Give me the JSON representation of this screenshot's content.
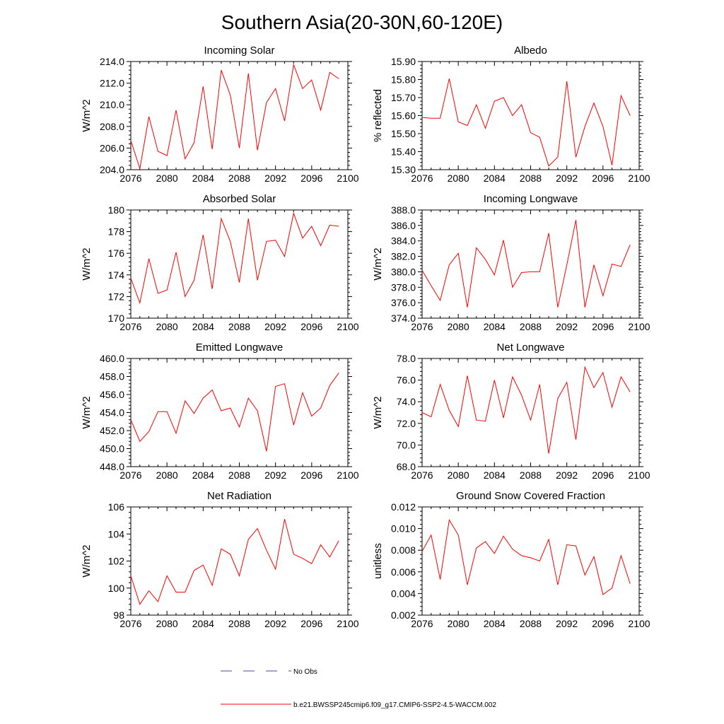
{
  "title": "Southern Asia(20-30N,60-120E)",
  "legend": {
    "obs_label": "No Obs",
    "obs_color": "#4a4aa8",
    "model_label": "b.e21.BWSSP245cmip6.f09_g17.CMIP6-SSP2-4.5-WACCM.002",
    "model_color": "#ff0000"
  },
  "chart_data": [
    {
      "type": "line",
      "title": "Incoming Solar",
      "xlabel": "",
      "ylabel": "W/m^2",
      "xlim": [
        2076,
        2100
      ],
      "ylim": [
        204.0,
        214.0
      ],
      "xticks": [
        2076,
        2080,
        2084,
        2088,
        2092,
        2096,
        2100
      ],
      "yticks": [
        "204.0",
        "206.0",
        "208.0",
        "210.0",
        "212.0",
        "214.0"
      ],
      "x": [
        2076,
        2077,
        2078,
        2079,
        2080,
        2081,
        2082,
        2083,
        2084,
        2085,
        2086,
        2087,
        2088,
        2089,
        2090,
        2091,
        2092,
        2093,
        2094,
        2095,
        2096,
        2097,
        2098,
        2099
      ],
      "series": [
        {
          "name": "b.e21.BWSSP245cmip6.f09_g17.CMIP6-SSP2-4.5-WACCM.002",
          "values": [
            206.7,
            204.1,
            208.9,
            205.7,
            205.3,
            209.5,
            205.0,
            206.5,
            211.7,
            205.9,
            213.2,
            210.9,
            206.0,
            212.9,
            205.8,
            210.2,
            211.5,
            208.5,
            213.7,
            211.5,
            212.3,
            209.5,
            213.0,
            212.4
          ]
        }
      ]
    },
    {
      "type": "line",
      "title": "Albedo",
      "xlabel": "",
      "ylabel": "% reflected",
      "xlim": [
        2076,
        2100
      ],
      "ylim": [
        15.3,
        15.9
      ],
      "xticks": [
        2076,
        2080,
        2084,
        2088,
        2092,
        2096,
        2100
      ],
      "yticks": [
        "15.30",
        "15.40",
        "15.50",
        "15.60",
        "15.70",
        "15.80",
        "15.90"
      ],
      "x": [
        2076,
        2077,
        2078,
        2079,
        2080,
        2081,
        2082,
        2083,
        2084,
        2085,
        2086,
        2087,
        2088,
        2089,
        2090,
        2091,
        2092,
        2093,
        2094,
        2095,
        2096,
        2097,
        2098,
        2099
      ],
      "series": [
        {
          "name": "b.e21.BWSSP245cmip6.f09_g17.CMIP6-SSP2-4.5-WACCM.002",
          "values": [
            15.59,
            15.585,
            15.585,
            15.805,
            15.565,
            15.545,
            15.66,
            15.53,
            15.68,
            15.7,
            15.6,
            15.66,
            15.505,
            15.48,
            15.32,
            15.37,
            15.79,
            15.37,
            15.54,
            15.67,
            15.54,
            15.325,
            15.71,
            15.6
          ]
        }
      ]
    },
    {
      "type": "line",
      "title": "Absorbed Solar",
      "xlabel": "",
      "ylabel": "W/m^2",
      "xlim": [
        2076,
        2100
      ],
      "ylim": [
        170,
        180
      ],
      "xticks": [
        2076,
        2080,
        2084,
        2088,
        2092,
        2096,
        2100
      ],
      "yticks": [
        "170",
        "172",
        "174",
        "176",
        "178",
        "180"
      ],
      "x": [
        2076,
        2077,
        2078,
        2079,
        2080,
        2081,
        2082,
        2083,
        2084,
        2085,
        2086,
        2087,
        2088,
        2089,
        2090,
        2091,
        2092,
        2093,
        2094,
        2095,
        2096,
        2097,
        2098,
        2099
      ],
      "series": [
        {
          "name": "b.e21.BWSSP245cmip6.f09_g17.CMIP6-SSP2-4.5-WACCM.002",
          "values": [
            173.7,
            171.4,
            175.5,
            172.3,
            172.6,
            176.1,
            172.0,
            173.5,
            177.7,
            172.7,
            179.2,
            177.1,
            173.3,
            179.2,
            173.5,
            177.1,
            177.2,
            175.7,
            179.7,
            177.4,
            178.5,
            176.7,
            178.6,
            178.5
          ]
        }
      ]
    },
    {
      "type": "line",
      "title": "Incoming Longwave",
      "xlabel": "",
      "ylabel": "W/m^2",
      "xlim": [
        2076,
        2100
      ],
      "ylim": [
        374.0,
        388.0
      ],
      "xticks": [
        2076,
        2080,
        2084,
        2088,
        2092,
        2096,
        2100
      ],
      "yticks": [
        "374.0",
        "376.0",
        "378.0",
        "380.0",
        "382.0",
        "384.0",
        "386.0",
        "388.0"
      ],
      "x": [
        2076,
        2077,
        2078,
        2079,
        2080,
        2081,
        2082,
        2083,
        2084,
        2085,
        2086,
        2087,
        2088,
        2089,
        2090,
        2091,
        2092,
        2093,
        2094,
        2095,
        2096,
        2097,
        2098,
        2099
      ],
      "series": [
        {
          "name": "b.e21.BWSSP245cmip6.f09_g17.CMIP6-SSP2-4.5-WACCM.002",
          "values": [
            380.2,
            378.2,
            376.3,
            380.9,
            382.4,
            375.4,
            383.1,
            381.6,
            379.6,
            384.1,
            378.0,
            379.9,
            380.0,
            380.0,
            385.0,
            375.4,
            380.9,
            386.7,
            375.4,
            380.9,
            376.9,
            381.0,
            380.7,
            383.5
          ]
        }
      ]
    },
    {
      "type": "line",
      "title": "Emitted Longwave",
      "xlabel": "",
      "ylabel": "W/m^2",
      "xlim": [
        2076,
        2100
      ],
      "ylim": [
        448.0,
        460.0
      ],
      "xticks": [
        2076,
        2080,
        2084,
        2088,
        2092,
        2096,
        2100
      ],
      "yticks": [
        "448.0",
        "450.0",
        "452.0",
        "454.0",
        "456.0",
        "458.0",
        "460.0"
      ],
      "x": [
        2076,
        2077,
        2078,
        2079,
        2080,
        2081,
        2082,
        2083,
        2084,
        2085,
        2086,
        2087,
        2088,
        2089,
        2090,
        2091,
        2092,
        2093,
        2094,
        2095,
        2096,
        2097,
        2098,
        2099
      ],
      "series": [
        {
          "name": "b.e21.BWSSP245cmip6.f09_g17.CMIP6-SSP2-4.5-WACCM.002",
          "values": [
            453.2,
            450.8,
            451.9,
            454.1,
            454.1,
            451.7,
            455.3,
            453.9,
            455.6,
            456.5,
            454.2,
            454.5,
            452.4,
            455.6,
            454.2,
            449.7,
            456.9,
            457.2,
            452.6,
            456.2,
            453.6,
            454.5,
            457.0,
            458.4
          ]
        }
      ]
    },
    {
      "type": "line",
      "title": "Net Longwave",
      "xlabel": "",
      "ylabel": "W/m^2",
      "xlim": [
        2076,
        2100
      ],
      "ylim": [
        68.0,
        78.0
      ],
      "xticks": [
        2076,
        2080,
        2084,
        2088,
        2092,
        2096,
        2100
      ],
      "yticks": [
        "68.0",
        "70.0",
        "72.0",
        "74.0",
        "76.0",
        "78.0"
      ],
      "x": [
        2076,
        2077,
        2078,
        2079,
        2080,
        2081,
        2082,
        2083,
        2084,
        2085,
        2086,
        2087,
        2088,
        2089,
        2090,
        2091,
        2092,
        2093,
        2094,
        2095,
        2096,
        2097,
        2098,
        2099
      ],
      "series": [
        {
          "name": "b.e21.BWSSP245cmip6.f09_g17.CMIP6-SSP2-4.5-WACCM.002",
          "values": [
            73.0,
            72.6,
            75.6,
            73.2,
            71.7,
            76.4,
            72.3,
            72.2,
            76.0,
            72.5,
            76.3,
            74.6,
            72.3,
            75.6,
            69.2,
            74.3,
            75.8,
            70.5,
            77.2,
            75.3,
            76.7,
            73.5,
            76.3,
            74.9
          ]
        }
      ]
    },
    {
      "type": "line",
      "title": "Net Radiation",
      "xlabel": "",
      "ylabel": "W/m^2",
      "xlim": [
        2076,
        2100
      ],
      "ylim": [
        98,
        106
      ],
      "xticks": [
        2076,
        2080,
        2084,
        2088,
        2092,
        2096,
        2100
      ],
      "yticks": [
        "98",
        "100",
        "102",
        "104",
        "106"
      ],
      "x": [
        2076,
        2077,
        2078,
        2079,
        2080,
        2081,
        2082,
        2083,
        2084,
        2085,
        2086,
        2087,
        2088,
        2089,
        2090,
        2091,
        2092,
        2093,
        2094,
        2095,
        2096,
        2097,
        2098,
        2099
      ],
      "series": [
        {
          "name": "b.e21.BWSSP245cmip6.f09_g17.CMIP6-SSP2-4.5-WACCM.002",
          "values": [
            100.9,
            98.8,
            99.8,
            99.0,
            100.9,
            99.7,
            99.7,
            101.3,
            101.7,
            100.2,
            102.9,
            102.5,
            100.9,
            103.6,
            104.4,
            102.8,
            101.4,
            105.1,
            102.5,
            102.2,
            101.8,
            103.2,
            102.3,
            103.5
          ]
        }
      ]
    },
    {
      "type": "line",
      "title": "Ground Snow Covered Fraction",
      "xlabel": "",
      "ylabel": "unitless",
      "xlim": [
        2076,
        2100
      ],
      "ylim": [
        0.002,
        0.012
      ],
      "xticks": [
        2076,
        2080,
        2084,
        2088,
        2092,
        2096,
        2100
      ],
      "yticks": [
        "0.002",
        "0.004",
        "0.006",
        "0.008",
        "0.010",
        "0.012"
      ],
      "x": [
        2076,
        2077,
        2078,
        2079,
        2080,
        2081,
        2082,
        2083,
        2084,
        2085,
        2086,
        2087,
        2088,
        2089,
        2090,
        2091,
        2092,
        2093,
        2094,
        2095,
        2096,
        2097,
        2098,
        2099
      ],
      "series": [
        {
          "name": "b.e21.BWSSP245cmip6.f09_g17.CMIP6-SSP2-4.5-WACCM.002",
          "values": [
            0.0079,
            0.0094,
            0.0053,
            0.0108,
            0.0094,
            0.0048,
            0.0082,
            0.0088,
            0.0077,
            0.0093,
            0.0081,
            0.0075,
            0.0073,
            0.007,
            0.009,
            0.0048,
            0.0085,
            0.0084,
            0.0057,
            0.0074,
            0.0039,
            0.0045,
            0.0075,
            0.0049
          ]
        }
      ]
    }
  ]
}
